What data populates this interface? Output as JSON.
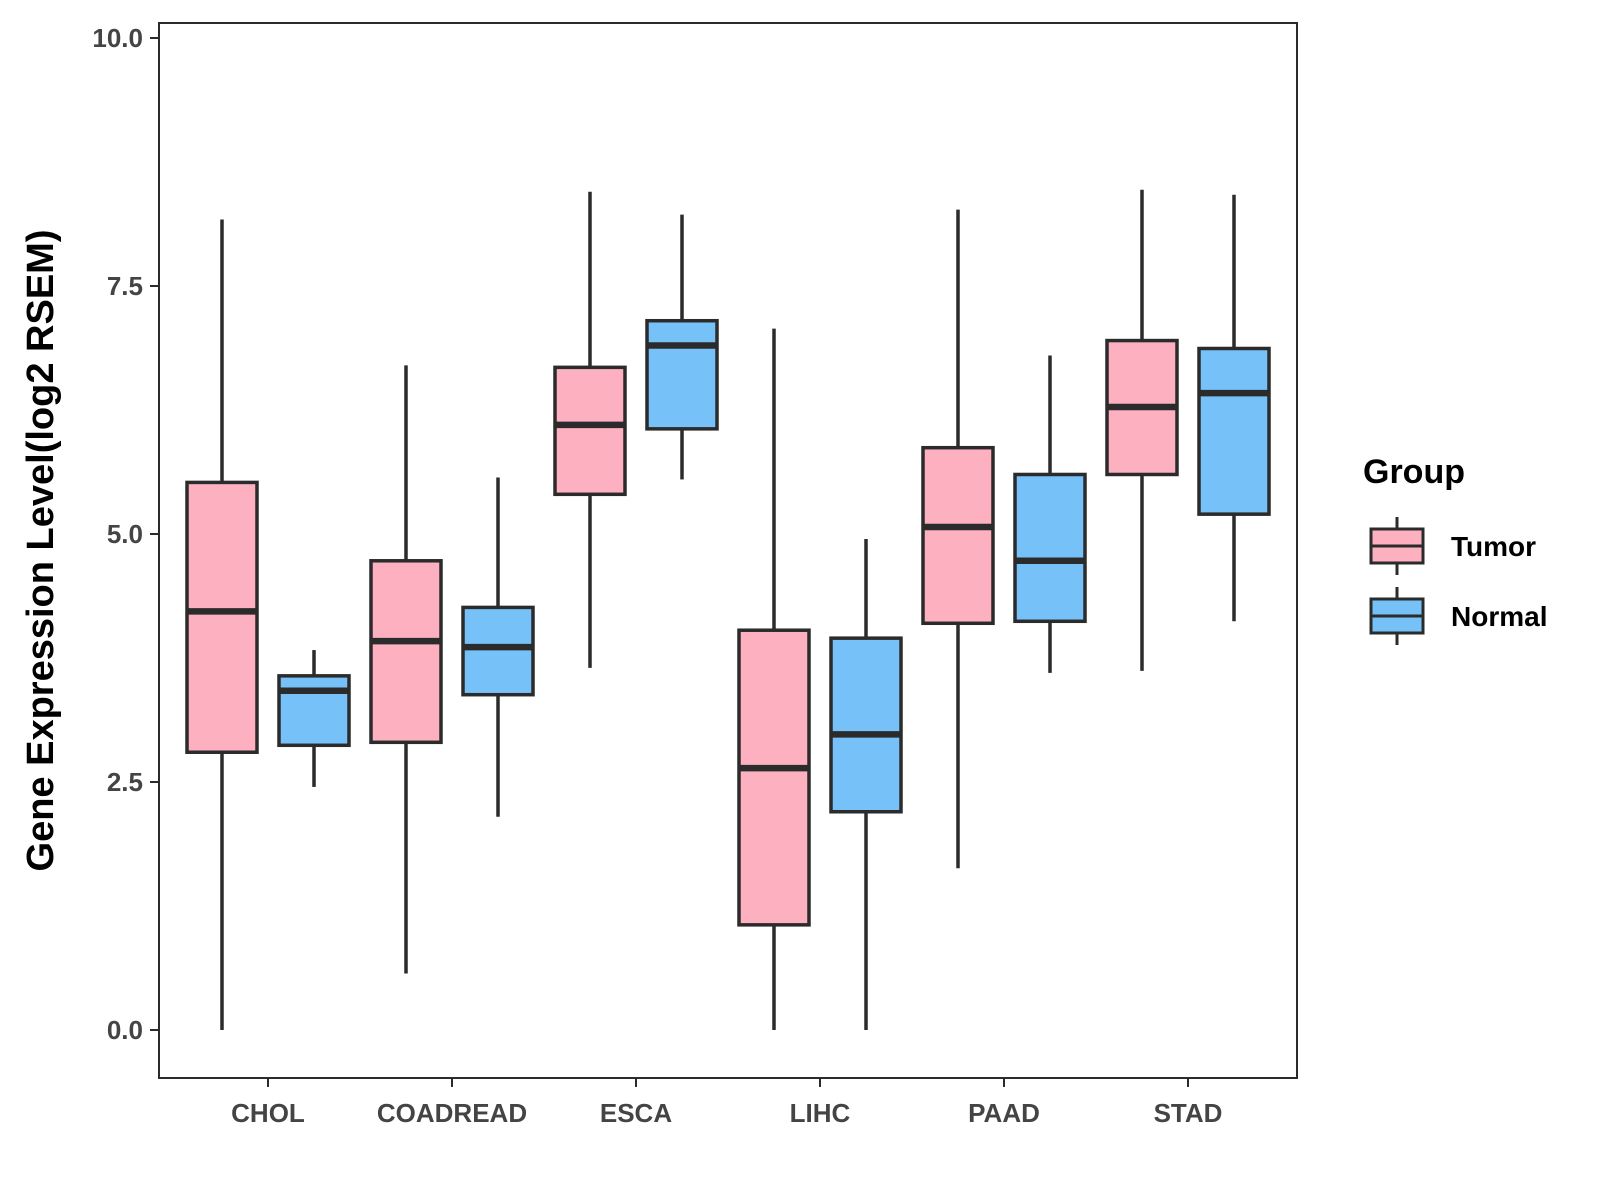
{
  "chart_data": {
    "type": "boxplot",
    "title": "",
    "xlabel": "",
    "ylabel": "Gene Expression Level(log2 RSEM)",
    "ylim": [
      -0.45,
      10.2
    ],
    "yticks": [
      "0.0",
      "2.5",
      "5.0",
      "7.5",
      "10.0"
    ],
    "ytick_values": [
      0,
      2.5,
      5,
      7.5,
      10
    ],
    "categories": [
      "CHOL",
      "COADREAD",
      "ESCA",
      "LIHC",
      "PAAD",
      "STAD"
    ],
    "legend": {
      "title": "Group",
      "position": "right"
    },
    "series": [
      {
        "name": "Tumor",
        "color": "#FDB0C0",
        "boxes": [
          {
            "min": 0.0,
            "q1": 2.8,
            "median": 4.22,
            "q3": 5.52,
            "max": 8.17
          },
          {
            "min": 0.57,
            "q1": 2.9,
            "median": 3.92,
            "q3": 4.73,
            "max": 6.7
          },
          {
            "min": 3.65,
            "q1": 5.4,
            "median": 6.1,
            "q3": 6.68,
            "max": 8.45
          },
          {
            "min": 0.0,
            "q1": 1.06,
            "median": 2.64,
            "q3": 4.03,
            "max": 7.07
          },
          {
            "min": 1.63,
            "q1": 4.1,
            "median": 5.07,
            "q3": 5.87,
            "max": 8.27
          },
          {
            "min": 3.62,
            "q1": 5.6,
            "median": 6.28,
            "q3": 6.95,
            "max": 8.47
          }
        ]
      },
      {
        "name": "Normal",
        "color": "#76C1F8",
        "boxes": [
          {
            "min": 2.45,
            "q1": 2.87,
            "median": 3.42,
            "q3": 3.57,
            "max": 3.83
          },
          {
            "min": 2.15,
            "q1": 3.38,
            "median": 3.86,
            "q3": 4.26,
            "max": 5.57
          },
          {
            "min": 5.55,
            "q1": 6.06,
            "median": 6.9,
            "q3": 7.15,
            "max": 8.22
          },
          {
            "min": 0.0,
            "q1": 2.2,
            "median": 2.98,
            "q3": 3.95,
            "max": 4.95
          },
          {
            "min": 3.6,
            "q1": 4.12,
            "median": 4.73,
            "q3": 5.6,
            "max": 6.8
          },
          {
            "min": 4.12,
            "q1": 5.2,
            "median": 6.42,
            "q3": 6.87,
            "max": 8.42
          }
        ]
      }
    ]
  }
}
